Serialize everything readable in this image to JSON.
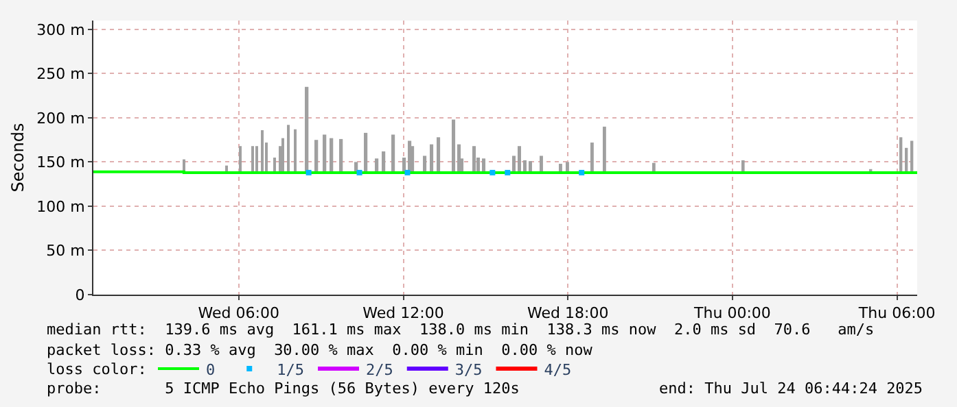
{
  "chart_data": {
    "type": "line",
    "ylabel": "Seconds",
    "xlim": [
      "2025-07-23T00:42",
      "2025-07-24T06:44"
    ],
    "xticks": [
      {
        "value": "2025-07-23T06:00",
        "label": "Wed 06:00"
      },
      {
        "value": "2025-07-23T12:00",
        "label": "Wed 12:00"
      },
      {
        "value": "2025-07-23T18:00",
        "label": "Wed 18:00"
      },
      {
        "value": "2025-07-24T00:00",
        "label": "Thu 00:00"
      },
      {
        "value": "2025-07-24T06:00",
        "label": "Thu 06:00"
      }
    ],
    "ylim": [
      0,
      310
    ],
    "yticks": [
      0,
      {
        "value": 50,
        "label": "50 m"
      },
      {
        "value": 100,
        "label": "100 m"
      },
      {
        "value": 150,
        "label": "150 m"
      },
      {
        "value": 200,
        "label": "200 m"
      },
      {
        "value": 250,
        "label": "250 m"
      },
      {
        "value": 300,
        "label": "300 m"
      }
    ],
    "grid": true,
    "legend": "bottom",
    "series": [
      {
        "type": "bar",
        "color": "#a0a0a0",
        "x": [
          "2025-07-23T04:00",
          "2025-07-23T05:33",
          "2025-07-23T06:03",
          "2025-07-23T06:30",
          "2025-07-23T06:39",
          "2025-07-23T06:51",
          "2025-07-23T07:00",
          "2025-07-23T07:18",
          "2025-07-23T07:30",
          "2025-07-23T07:36",
          "2025-07-23T07:48",
          "2025-07-23T08:03",
          "2025-07-23T08:30",
          "2025-07-23T08:51",
          "2025-07-23T09:09",
          "2025-07-23T09:24",
          "2025-07-23T09:45",
          "2025-07-23T10:18",
          "2025-07-23T10:39",
          "2025-07-23T11:03",
          "2025-07-23T11:18",
          "2025-07-23T11:39",
          "2025-07-23T12:03",
          "2025-07-23T12:15",
          "2025-07-23T12:21",
          "2025-07-23T12:48",
          "2025-07-23T13:03",
          "2025-07-23T13:18",
          "2025-07-23T13:51",
          "2025-07-23T14:03",
          "2025-07-23T14:09",
          "2025-07-23T14:36",
          "2025-07-23T14:45",
          "2025-07-23T14:57",
          "2025-07-23T16:03",
          "2025-07-23T16:15",
          "2025-07-23T16:27",
          "2025-07-23T16:39",
          "2025-07-23T17:03",
          "2025-07-23T17:45",
          "2025-07-23T18:00",
          "2025-07-23T18:54",
          "2025-07-23T19:21",
          "2025-07-23T21:09",
          "2025-07-24T00:24",
          "2025-07-24T05:03",
          "2025-07-24T06:09",
          "2025-07-24T06:21",
          "2025-07-24T06:33"
        ],
        "base": [
          138,
          138,
          138,
          138,
          138,
          138,
          138,
          138,
          138,
          138,
          138,
          138,
          138,
          138,
          138,
          138,
          138,
          138,
          138,
          138,
          138,
          138,
          138,
          138,
          138,
          138,
          138,
          138,
          138,
          138,
          138,
          138,
          138,
          138,
          138,
          138,
          138,
          138,
          138,
          138,
          138,
          138,
          138,
          138,
          138,
          138,
          138,
          138,
          138
        ],
        "values": [
          15,
          8,
          30,
          30,
          30,
          48,
          34,
          17,
          30,
          39,
          54,
          49,
          97,
          37,
          43,
          39,
          38,
          12,
          45,
          16,
          24,
          43,
          17,
          36,
          30,
          19,
          32,
          40,
          60,
          32,
          16,
          30,
          17,
          16,
          19,
          30,
          14,
          13,
          19,
          10,
          12,
          34,
          52,
          11,
          14,
          4,
          40,
          28,
          36
        ]
      },
      {
        "name": "0",
        "color": "#00ff00",
        "x": [
          "2025-07-23T00:42",
          "2025-07-23T02:00",
          "2025-07-23T04:00",
          "2025-07-23T06:00",
          "2025-07-23T08:00",
          "2025-07-23T10:00",
          "2025-07-23T12:00",
          "2025-07-23T14:00",
          "2025-07-23T16:00",
          "2025-07-23T18:00",
          "2025-07-23T20:00",
          "2025-07-23T22:00",
          "2025-07-24T00:00",
          "2025-07-24T02:00",
          "2025-07-24T04:00",
          "2025-07-24T06:00",
          "2025-07-24T06:44"
        ],
        "values": [
          139,
          139,
          138,
          138,
          138,
          138,
          138,
          138,
          138,
          138,
          138,
          138,
          138,
          138,
          138,
          138,
          138
        ]
      },
      {
        "name": "1/5",
        "type": "scatter",
        "color": "#00b8ff",
        "x": [
          "2025-07-23T08:33",
          "2025-07-23T10:24",
          "2025-07-23T12:09",
          "2025-07-23T15:15",
          "2025-07-23T15:48",
          "2025-07-23T18:30"
        ],
        "values": [
          138,
          138,
          138,
          138,
          138,
          138
        ]
      },
      {
        "name": "2/5",
        "color": "#d000ff"
      },
      {
        "name": "3/5",
        "color": "#6000ff"
      },
      {
        "name": "4/5",
        "color": "#ff0000"
      }
    ],
    "annotations": [
      "median rtt:  139.6 ms avg  161.1 ms max  138.0 ms min  138.3 ms now  2.0 ms sd  70.6   am/s",
      "packet loss: 0.33 % avg  30.00 % max  0.00 % min  0.00 % now",
      "loss color:",
      "probe:       5 ICMP Echo Pings (56 Bytes) every 120s",
      "end: Thu Jul 24 06:44:24 2025"
    ]
  }
}
